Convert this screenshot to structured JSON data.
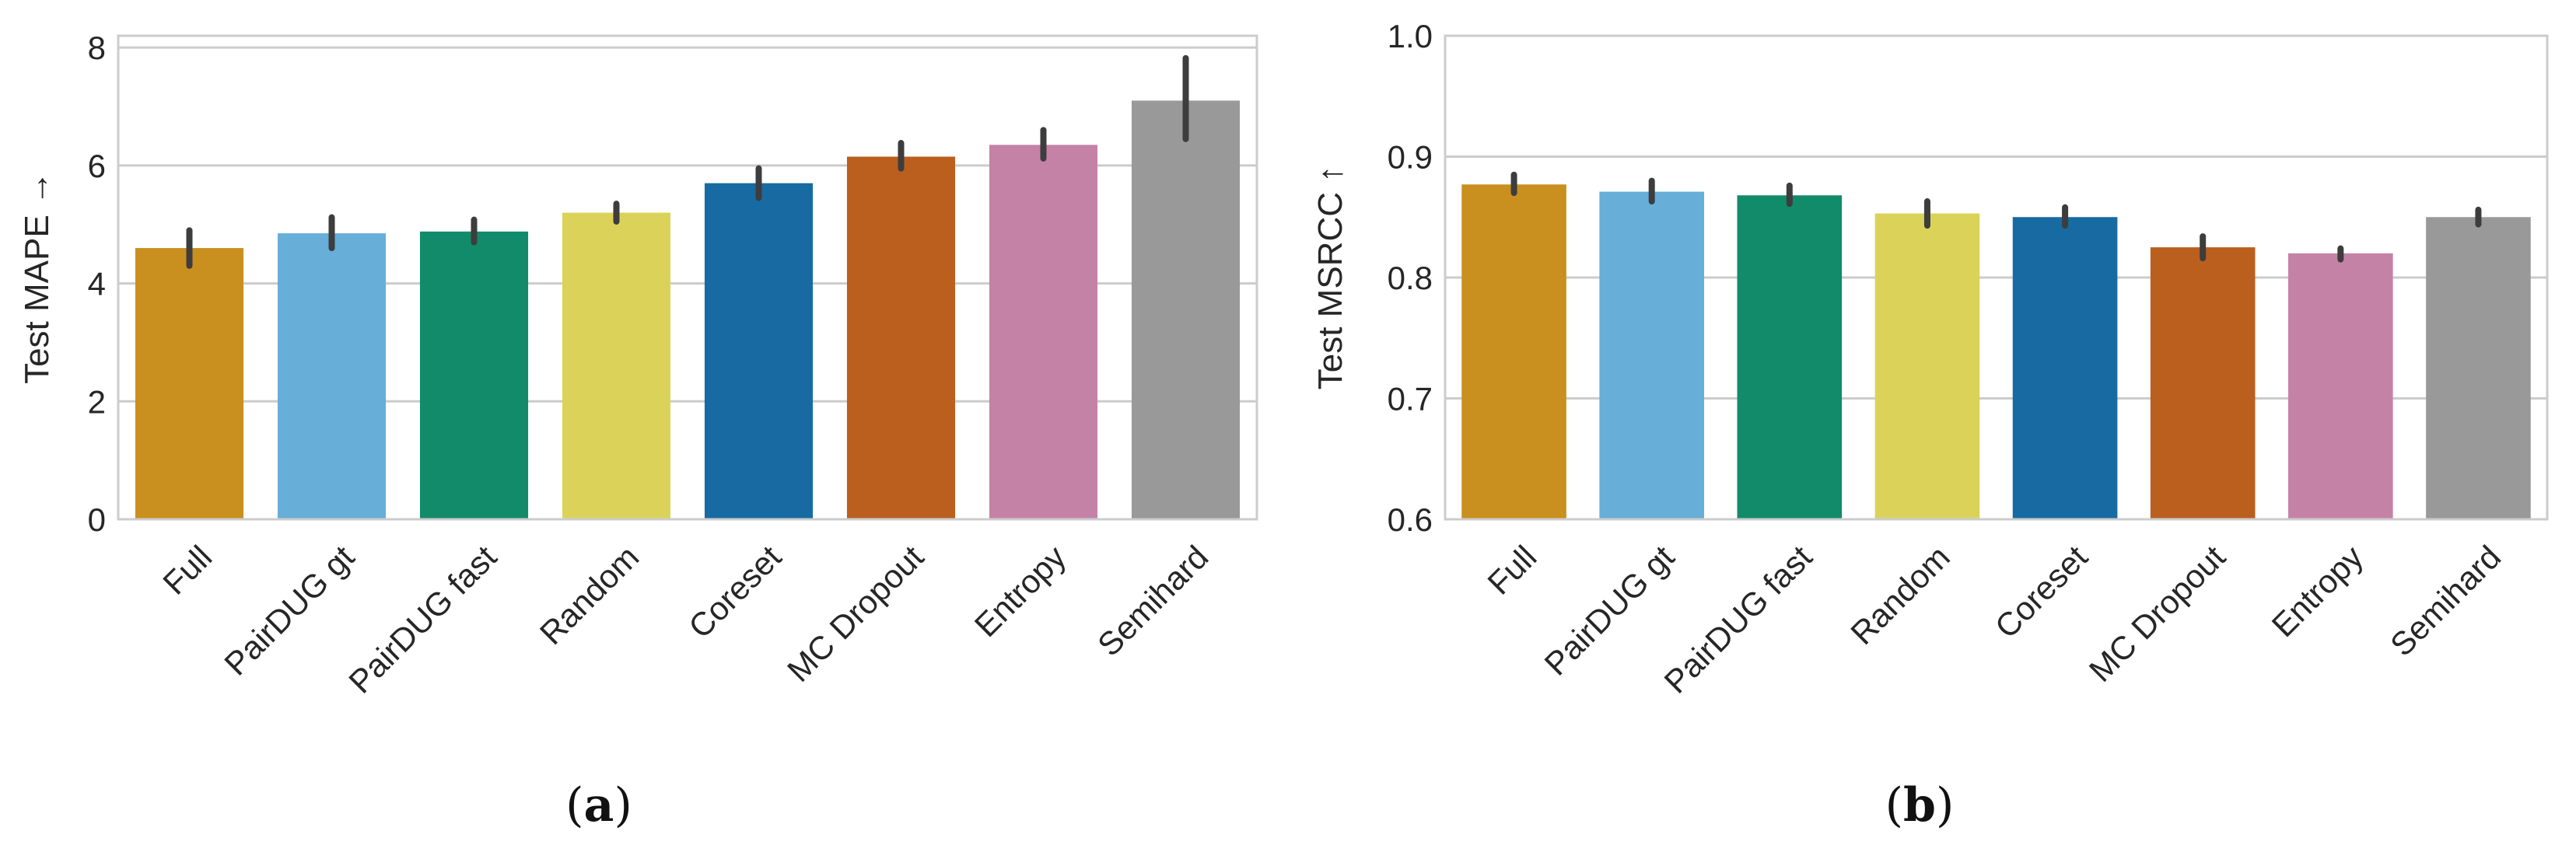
{
  "chart_data": [
    {
      "type": "bar",
      "caption": "(a)",
      "caption_letter": "a",
      "ylabel": "Test MAPE →",
      "ylim": [
        0,
        8.2
      ],
      "yticks": [
        0,
        2,
        4,
        6,
        8
      ],
      "categories": [
        "Full",
        "PairDUG gt",
        "PairDUG fast",
        "Random",
        "Coreset",
        "MC Dropout",
        "Entropy",
        "Semihard"
      ],
      "values": [
        4.6,
        4.85,
        4.88,
        5.2,
        5.7,
        6.15,
        6.35,
        7.1
      ],
      "error_low": [
        4.3,
        4.6,
        4.7,
        5.05,
        5.45,
        5.95,
        6.12,
        6.45
      ],
      "error_high": [
        4.9,
        5.12,
        5.08,
        5.35,
        5.95,
        6.38,
        6.6,
        7.82
      ],
      "colors": [
        "#c9901f",
        "#67aed8",
        "#128b6b",
        "#dbd359",
        "#176ba2",
        "#bb5f1e",
        "#c582a7",
        "#999999"
      ],
      "grid": true
    },
    {
      "type": "bar",
      "caption": "(b)",
      "caption_letter": "b",
      "ylabel": "Test MSRCC ↑",
      "ylim": [
        0.6,
        1.0
      ],
      "yticks": [
        0.6,
        0.7,
        0.8,
        0.9,
        1.0
      ],
      "ytick_labels": [
        "0.6",
        "0.7",
        "0.8",
        "0.9",
        "1.0"
      ],
      "categories": [
        "Full",
        "PairDUG gt",
        "PairDUG fast",
        "Random",
        "Coreset",
        "MC Dropout",
        "Entropy",
        "Semihard"
      ],
      "values": [
        0.877,
        0.871,
        0.868,
        0.853,
        0.85,
        0.825,
        0.82,
        0.85
      ],
      "error_low": [
        0.87,
        0.863,
        0.861,
        0.843,
        0.843,
        0.816,
        0.815,
        0.844
      ],
      "error_high": [
        0.885,
        0.88,
        0.876,
        0.863,
        0.858,
        0.834,
        0.824,
        0.856
      ],
      "colors": [
        "#c9901f",
        "#67aed8",
        "#128b6b",
        "#dbd359",
        "#176ba2",
        "#bb5f1e",
        "#c582a7",
        "#999999"
      ],
      "grid": true
    }
  ]
}
